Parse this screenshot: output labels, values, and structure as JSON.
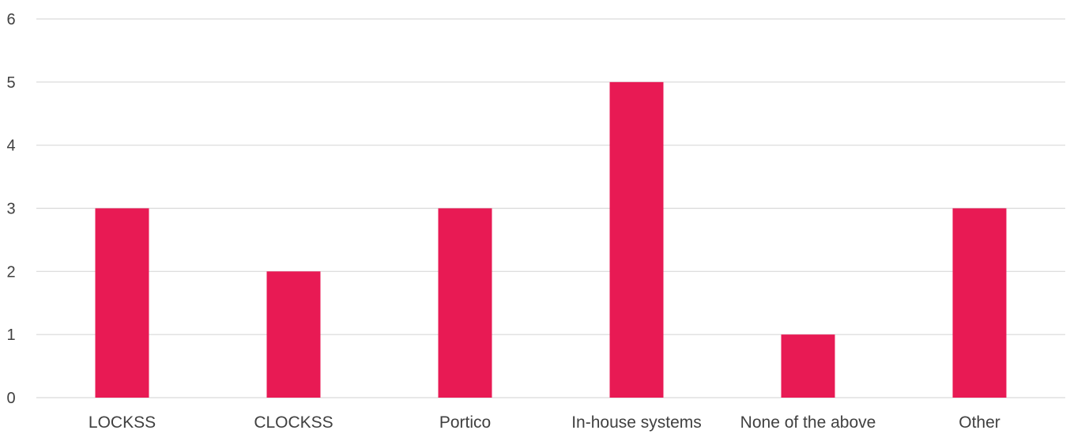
{
  "chart_data": {
    "type": "bar",
    "title": "",
    "xlabel": "",
    "ylabel": "",
    "categories": [
      "LOCKSS",
      "CLOCKSS",
      "Portico",
      "In-house systems",
      "None of the above",
      "Other"
    ],
    "series": [
      {
        "values": [
          3,
          2,
          3,
          5,
          1,
          3
        ]
      }
    ],
    "ylim": [
      0,
      6
    ],
    "yticks": [
      0,
      1,
      2,
      3,
      4,
      5,
      6
    ],
    "grid": true,
    "legend": "none",
    "colors": {
      "bar": "#e81a54",
      "grid": "#d9d9d9",
      "text": "#404040"
    }
  }
}
